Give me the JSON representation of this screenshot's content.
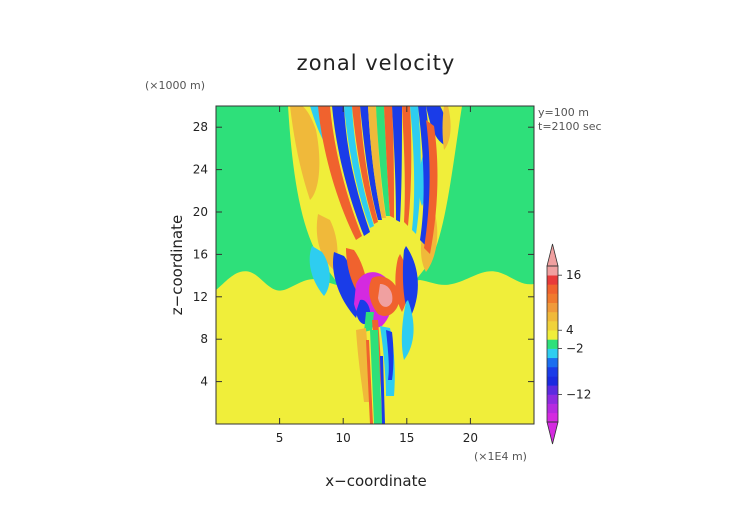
{
  "chart_data": {
    "type": "heatmap",
    "title": "zonal velocity",
    "xlabel": "x−coordinate",
    "ylabel": "z−coordinate",
    "x_unit": "(×1E4 m)",
    "y_unit": "(×1000 m)",
    "annotations": [
      "y=100 m",
      "t=2100 sec"
    ],
    "xlim": [
      0,
      25
    ],
    "ylim": [
      0,
      30
    ],
    "x_ticks": [
      5,
      10,
      15,
      20
    ],
    "y_ticks": [
      4,
      8,
      12,
      16,
      20,
      24,
      28
    ],
    "colorbar": {
      "levels": [
        -18,
        -16,
        -14,
        -12,
        -10,
        -8,
        -6,
        -4,
        -2,
        2,
        4,
        6,
        8,
        10,
        12,
        14,
        16,
        18
      ],
      "tick_labels": [
        {
          "value": -12,
          "label": "−12"
        },
        {
          "value": -2,
          "label": "−2"
        },
        {
          "value": 4,
          "label": "4"
        },
        {
          "value": 16,
          "label": "16"
        }
      ],
      "colors": [
        "#d42ae0",
        "#b62ae0",
        "#8f2ae0",
        "#5c2ae0",
        "#1a2ae0",
        "#1a3ce8",
        "#1a6ef0",
        "#2ecdf0",
        "#2ee07a",
        "#f0ee3a",
        "#f0d23a",
        "#f0b93a",
        "#f09a3a",
        "#f07a2e",
        "#f0622e",
        "#e83a3a",
        "#f0a0a0"
      ],
      "under_color": "#d42ae0",
      "over_color": "#f0a0a0"
    }
  }
}
